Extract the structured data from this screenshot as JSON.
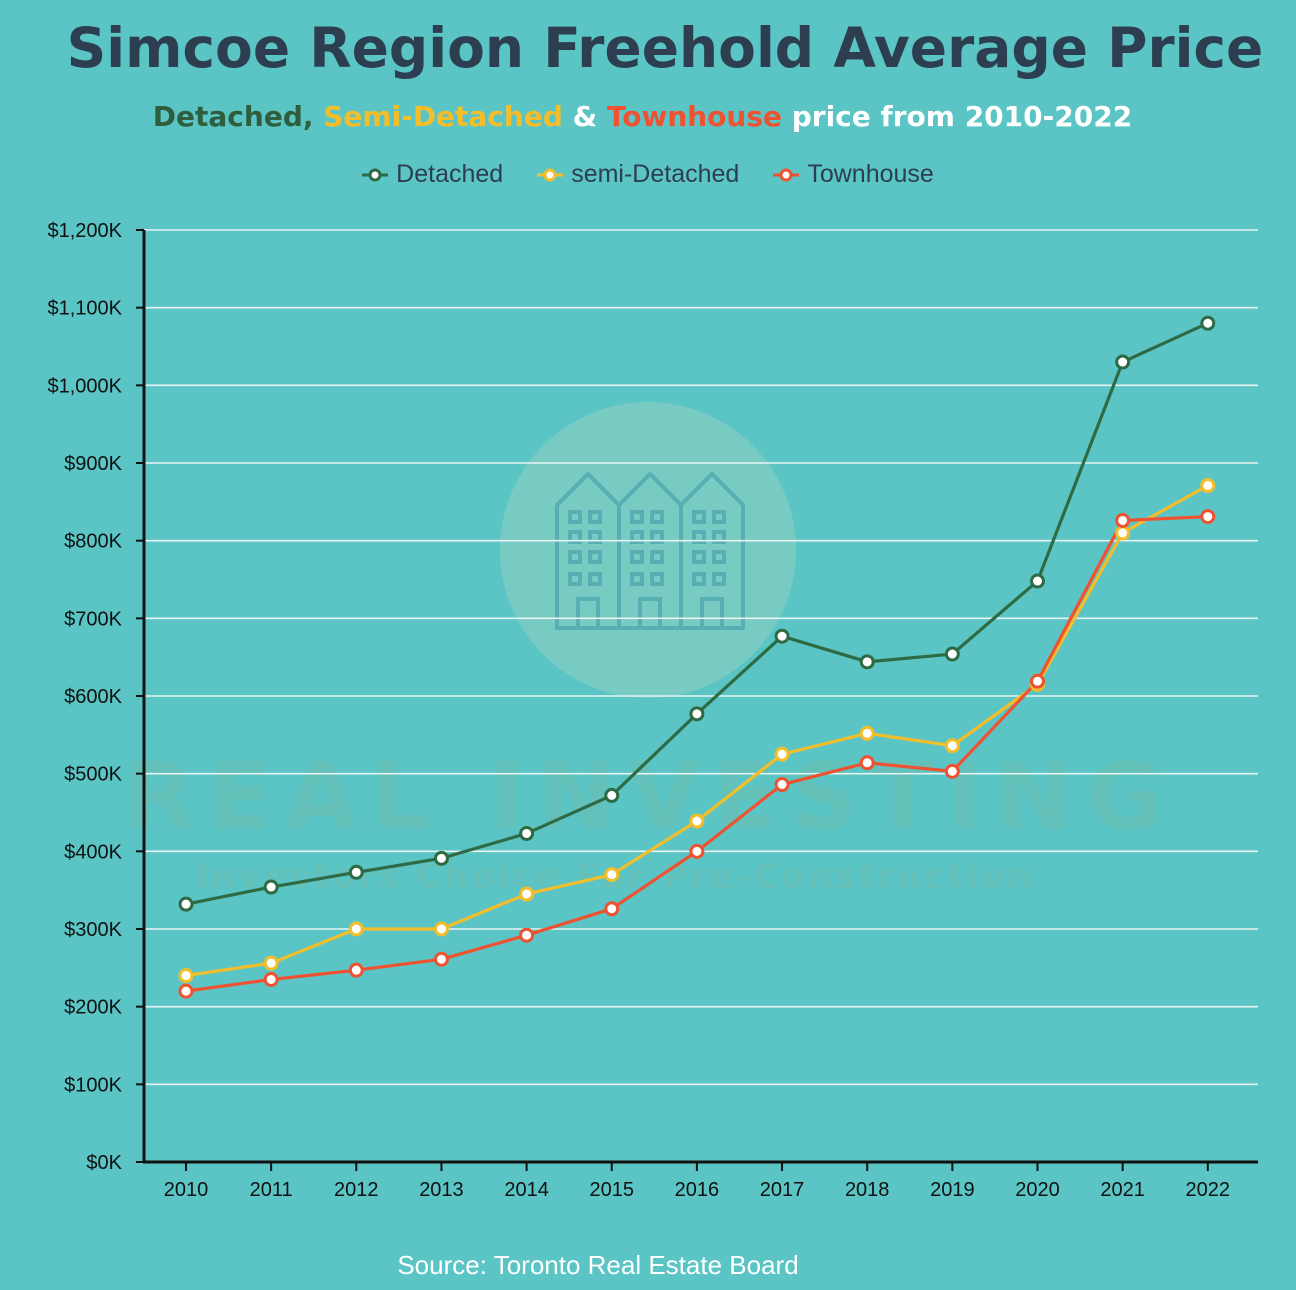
{
  "header": {
    "title": "Simcoe Region Freehold Average Price",
    "subtitle_parts": {
      "detached": "Detached,",
      "semi": "Semi-Detached",
      "amp": " & ",
      "townhouse": "Townhouse",
      "rest": " price from 2010-2022"
    }
  },
  "watermark": {
    "logo_icon": "townhouse-building-icon",
    "text_big": "REAL INVESTING",
    "text_small": "Investors Choice For Pre-Construction"
  },
  "source": "Source: Toronto Real Estate Board",
  "colors": {
    "background": "#5bc5c5",
    "detached": "#2e6b45",
    "semi": "#f4be2a",
    "townhouse": "#ee5230",
    "grid": "#e6f4f4",
    "axis": "#111111"
  },
  "chart_data": {
    "type": "line",
    "title": "Simcoe Region Freehold Average Price",
    "xlabel": "",
    "ylabel": "",
    "x": [
      "2010",
      "2011",
      "2012",
      "2013",
      "2014",
      "2015",
      "2016",
      "2017",
      "2018",
      "2019",
      "2020",
      "2021",
      "2022"
    ],
    "ylim": [
      0,
      1200
    ],
    "yticks": [
      0,
      100,
      200,
      300,
      400,
      500,
      600,
      700,
      800,
      900,
      1000,
      1100,
      1200
    ],
    "ytick_labels": [
      "$0K",
      "$100K",
      "$200K",
      "$300K",
      "$400K",
      "$500K",
      "$600K",
      "$700K",
      "$800K",
      "$900K",
      "$1,000K",
      "$1,100K",
      "$1,200K"
    ],
    "grid": true,
    "legend_position": "top-center",
    "series": [
      {
        "name": "Detached",
        "color": "#2e6b45",
        "values": [
          332,
          354,
          373,
          391,
          423,
          472,
          577,
          677,
          644,
          654,
          748,
          1030,
          1080
        ]
      },
      {
        "name": "semi-Detached",
        "color": "#f4be2a",
        "values": [
          240,
          256,
          300,
          300,
          345,
          370,
          439,
          525,
          552,
          536,
          615,
          810,
          871
        ]
      },
      {
        "name": "Townhouse",
        "color": "#ee5230",
        "values": [
          220,
          235,
          247,
          261,
          292,
          326,
          400,
          486,
          514,
          503,
          619,
          826,
          831
        ]
      }
    ]
  }
}
